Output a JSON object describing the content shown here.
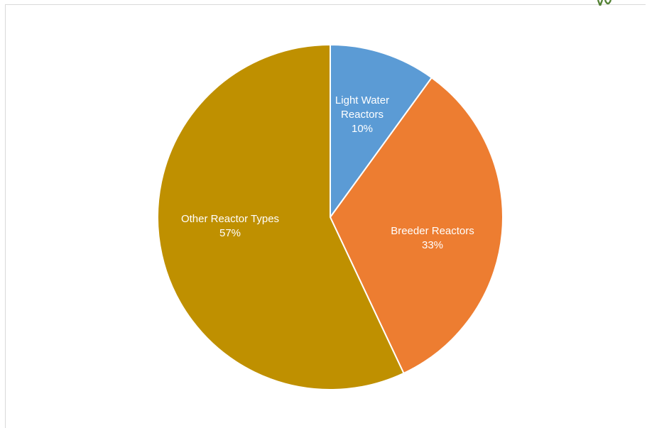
{
  "chart_data": {
    "type": "pie",
    "title": "",
    "start_angle_deg": 0,
    "direction": "clockwise",
    "legend": "none",
    "slices": [
      {
        "label_lines": [
          "Light Water",
          "Reactors"
        ],
        "percent_label": "10%",
        "value": 10,
        "color": "#5b9bd5"
      },
      {
        "label_lines": [
          "Breeder Reactors"
        ],
        "percent_label": "33%",
        "value": 33,
        "color": "#ed7d31"
      },
      {
        "label_lines": [
          "Other Reactor Types"
        ],
        "percent_label": "57%",
        "value": 57,
        "color": "#bf9000"
      }
    ]
  },
  "decor": {
    "corner_mark_icon": "green-glyph-fragment-icon",
    "corner_mark_color": "#548235"
  }
}
